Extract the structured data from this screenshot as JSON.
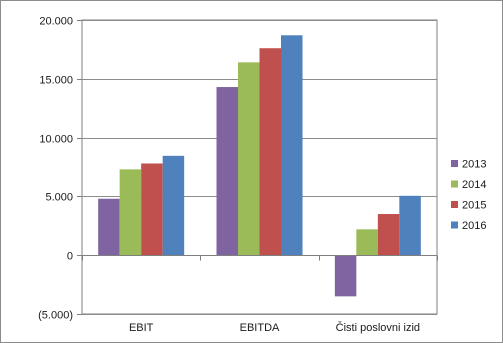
{
  "chart_data": {
    "type": "bar",
    "title": "",
    "xlabel": "",
    "ylabel": "",
    "categories": [
      "EBIT",
      "EBITDA",
      "Čisti poslovni izid"
    ],
    "series": [
      {
        "name": "2013",
        "color": "#8064a2",
        "values": [
          4800,
          14300,
          -3500
        ]
      },
      {
        "name": "2014",
        "color": "#9bbb59",
        "values": [
          7300,
          16400,
          2200
        ]
      },
      {
        "name": "2015",
        "color": "#c0504d",
        "values": [
          7800,
          17600,
          3500
        ]
      },
      {
        "name": "2016",
        "color": "#4f81bd",
        "values": [
          8450,
          18700,
          5050
        ]
      }
    ],
    "ylim": [
      -5000,
      20000
    ],
    "yticks": [
      {
        "value": 20000,
        "label": "20.000"
      },
      {
        "value": 15000,
        "label": "15.000"
      },
      {
        "value": 10000,
        "label": "10.000"
      },
      {
        "value": 5000,
        "label": "5.000"
      },
      {
        "value": 0,
        "label": "0"
      },
      {
        "value": -5000,
        "label": "(5.000)"
      }
    ],
    "grid": true,
    "legend": "right"
  }
}
